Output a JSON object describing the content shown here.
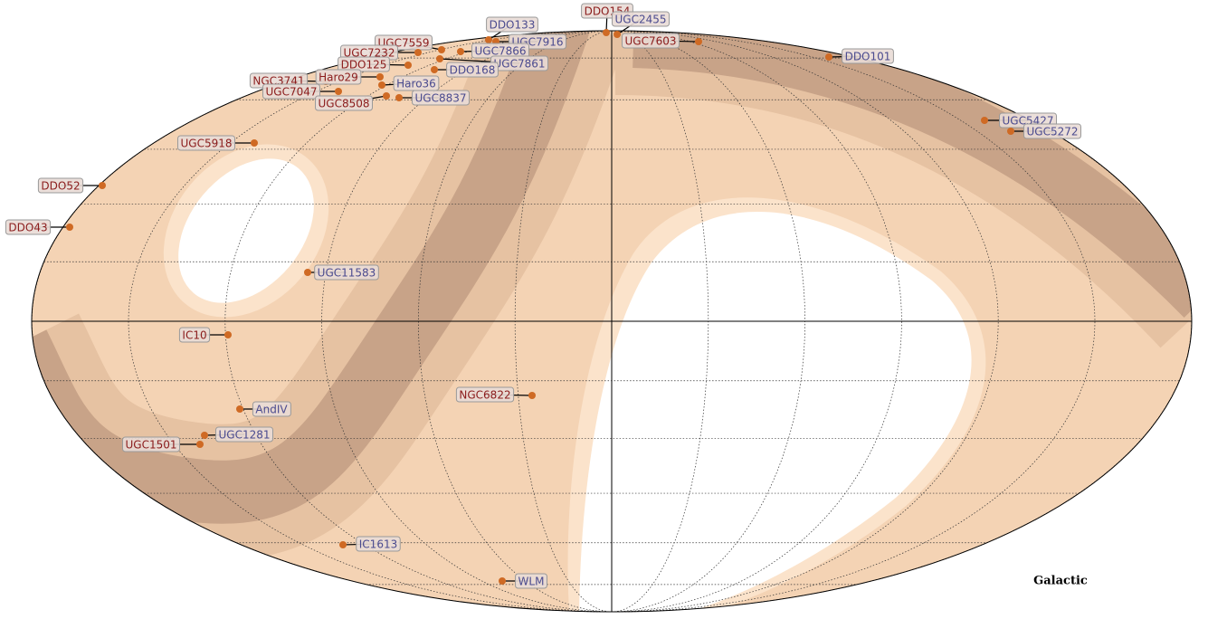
{
  "title": "Galactic",
  "label_colors": {
    "red": "#8b1c1c",
    "blue": "#4b4b8f"
  },
  "objects": [
    {
      "name": "DDO154",
      "color": "red"
    },
    {
      "name": "UGC2455",
      "color": "blue"
    },
    {
      "name": "DDO133",
      "color": "blue"
    },
    {
      "name": "UGC7916",
      "color": "blue"
    },
    {
      "name": "UGC7603",
      "color": "red"
    },
    {
      "name": "UGC7559",
      "color": "red"
    },
    {
      "name": "UGC7866",
      "color": "blue"
    },
    {
      "name": "UGC7232",
      "color": "red"
    },
    {
      "name": "DDO125",
      "color": "red"
    },
    {
      "name": "UGC7861",
      "color": "blue"
    },
    {
      "name": "DDO168",
      "color": "blue"
    },
    {
      "name": "DDO101",
      "color": "blue"
    },
    {
      "name": "NGC3741",
      "color": "red"
    },
    {
      "name": "Haro29",
      "color": "red"
    },
    {
      "name": "Haro36",
      "color": "blue"
    },
    {
      "name": "UGC7047",
      "color": "red"
    },
    {
      "name": "UGC8837",
      "color": "blue"
    },
    {
      "name": "UGC8508",
      "color": "red"
    },
    {
      "name": "UGC5427",
      "color": "blue"
    },
    {
      "name": "UGC5272",
      "color": "blue"
    },
    {
      "name": "UGC5918",
      "color": "red"
    },
    {
      "name": "DDO52",
      "color": "red"
    },
    {
      "name": "DDO43",
      "color": "red"
    },
    {
      "name": "UGC11583",
      "color": "blue"
    },
    {
      "name": "IC10",
      "color": "red"
    },
    {
      "name": "NGC6822",
      "color": "red"
    },
    {
      "name": "AndIV",
      "color": "blue"
    },
    {
      "name": "UGC1281",
      "color": "blue"
    },
    {
      "name": "UGC1501",
      "color": "red"
    },
    {
      "name": "IC1613",
      "color": "blue"
    },
    {
      "name": "WLM",
      "color": "blue"
    }
  ]
}
